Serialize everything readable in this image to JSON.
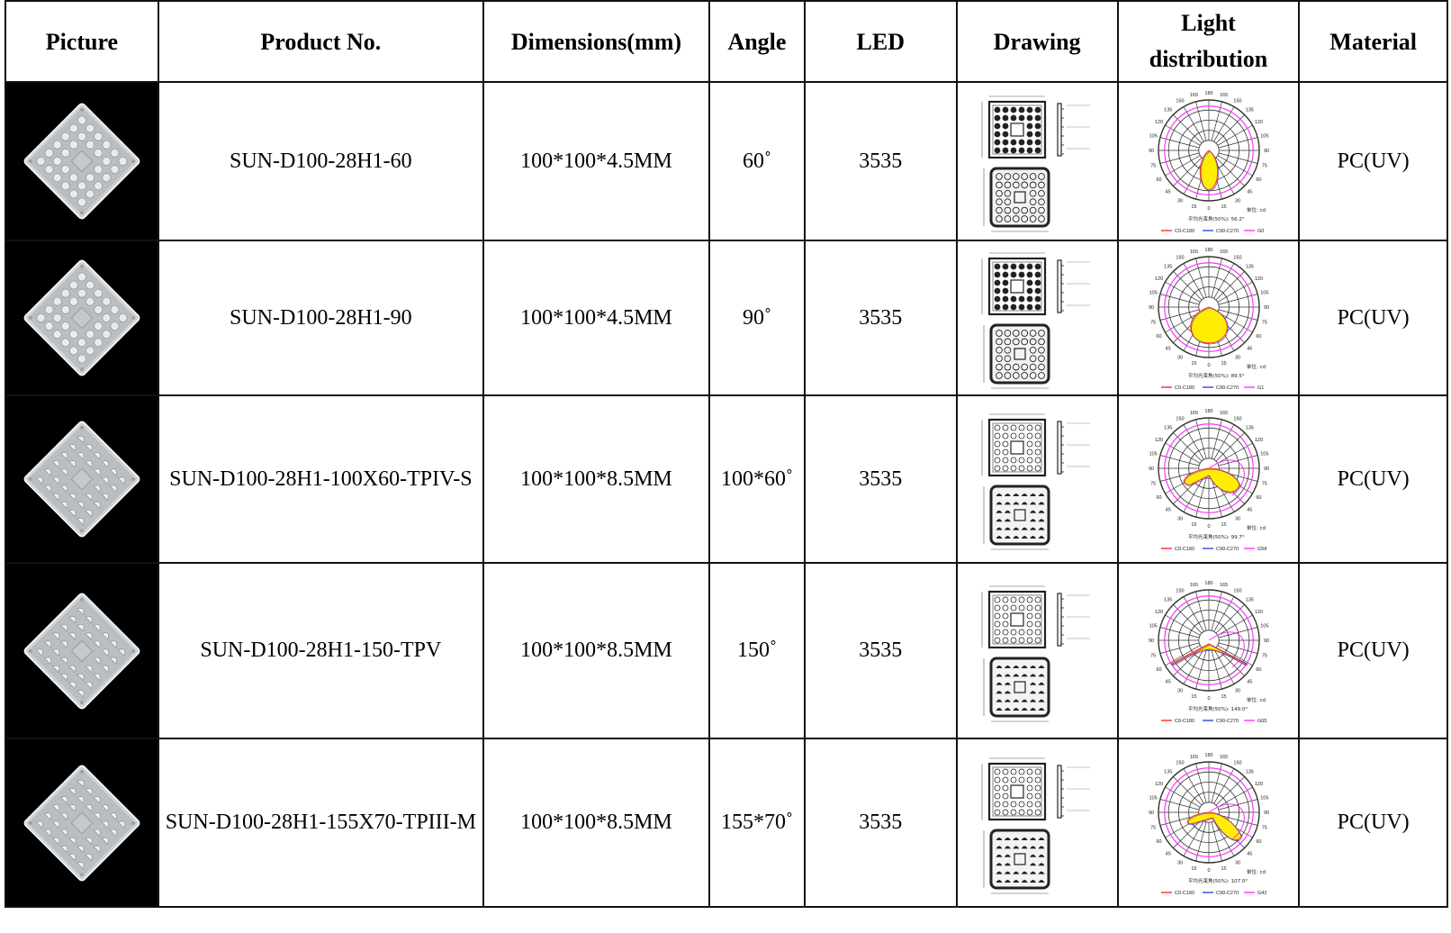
{
  "headers": {
    "picture": "Picture",
    "product_no": "Product No.",
    "dimensions": "Dimensions(mm)",
    "angle": "Angle",
    "led": "LED",
    "drawing": "Drawing",
    "light_distribution_line1": "Light",
    "light_distribution_line2": "distribution",
    "material": "Material"
  },
  "rows": [
    {
      "product_no": "SUN-D100-28H1-60",
      "dimensions": "100*100*4.5MM",
      "angle": "60˚",
      "led": "3535",
      "material": "PC(UV)",
      "polar_caption": "平均光束角(50%): 56.2°",
      "polar_unit": "单位: cd",
      "legend": [
        "C0-C180",
        "C90-C270",
        "G0"
      ]
    },
    {
      "product_no": "SUN-D100-28H1-90",
      "dimensions": "100*100*4.5MM",
      "angle": "90˚",
      "led": "3535",
      "material": "PC(UV)",
      "polar_caption": "平均光束角(50%): 89.5°",
      "polar_unit": "单位: cd",
      "legend": [
        "C0-C180",
        "C90-C270",
        "G1"
      ]
    },
    {
      "product_no": "SUN-D100-28H1-100X60-TPIV-S",
      "dimensions": "100*100*8.5MM",
      "angle": "100*60˚",
      "led": "3535",
      "material": "PC(UV)",
      "polar_caption": "平均光束角(50%): 99.7°",
      "polar_unit": "单位: cd",
      "legend": [
        "C0-C180",
        "C90-C270",
        "G58"
      ]
    },
    {
      "product_no": "SUN-D100-28H1-150-TPV",
      "dimensions": "100*100*8.5MM",
      "angle": "150˚",
      "led": "3535",
      "material": "PC(UV)",
      "polar_caption": "平均光束角(50%): 149.0°",
      "polar_unit": "单位: cd",
      "legend": [
        "C0-C180",
        "C90-C270",
        "G65"
      ]
    },
    {
      "product_no": "SUN-D100-28H1-155X70-TPIII-M",
      "dimensions": "100*100*8.5MM",
      "angle": "155*70˚",
      "led": "3535",
      "material": "PC(UV)",
      "polar_caption": "平均光束角(50%): 107.0°",
      "polar_unit": "单位: cd",
      "legend": [
        "C0-C180",
        "C90-C270",
        "G42"
      ]
    }
  ],
  "polar_ticks": [
    "180",
    "165",
    "150",
    "135",
    "120",
    "105",
    "90",
    "75",
    "60",
    "45",
    "30",
    "15",
    "0"
  ],
  "colors": {
    "curve_c0": "#ff2a2a",
    "curve_c90": "#3344dd",
    "curve_g": "#ff33ff",
    "lobe_fill": "#ffee00",
    "lens_dark": "#000000"
  },
  "icons": {
    "picture": "lens-photo-icon",
    "drawing": "technical-drawing-icon",
    "light_distribution": "polar-plot-icon"
  }
}
